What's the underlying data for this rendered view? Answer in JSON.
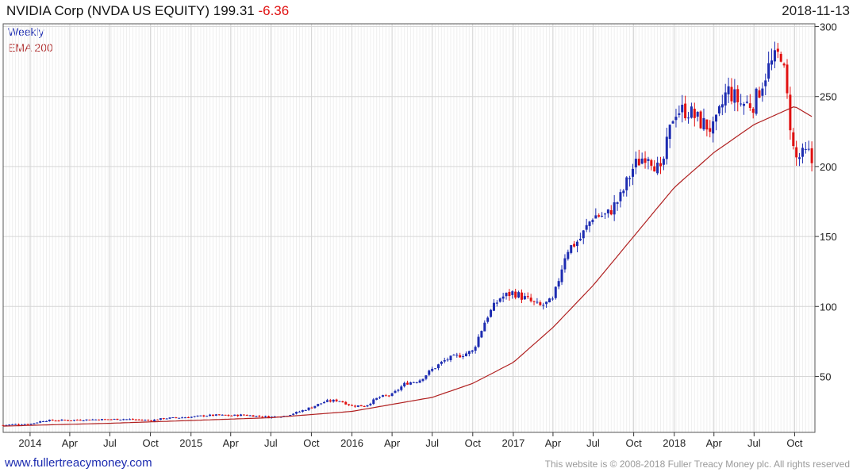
{
  "header": {
    "title": "NVIDIA Corp (NVDA US EQUITY)",
    "price": "199.31",
    "change": "-6.36",
    "date": "2018-11-13"
  },
  "legend": {
    "weekly": "Weekly",
    "ema": "EMA 200"
  },
  "footer": {
    "link": "www.fullertreacymoney.com",
    "copyright": "This website is © 2008-2018 Fuller Treacy Money plc. All rights reserved"
  },
  "colors": {
    "up": "#1c2bb0",
    "down": "#e01010",
    "ema": "#b02020",
    "grid": "#d6d6d6"
  },
  "chart_data": {
    "type": "candlestick",
    "frequency": "weekly",
    "y_ticks": [
      50,
      100,
      150,
      200,
      250,
      300
    ],
    "ylim": [
      10,
      302
    ],
    "y_axis_position": "right",
    "grid": true,
    "x_ticks": [
      "2014",
      "Apr",
      "Jul",
      "Oct",
      "2015",
      "Apr",
      "Jul",
      "Oct",
      "2016",
      "Apr",
      "Jul",
      "Oct",
      "2017",
      "Apr",
      "Jul",
      "Oct",
      "2018",
      "Apr",
      "Jul",
      "Oct"
    ],
    "x_range": [
      "2013-11-01",
      "2018-11-16"
    ],
    "last_close": 199.31,
    "series": [
      {
        "name": "Weekly",
        "kind": "close",
        "points": [
          [
            "2013-11-01",
            15.2
          ],
          [
            "2013-12-01",
            15.8
          ],
          [
            "2014-01-01",
            16.0
          ],
          [
            "2014-02-01",
            18.4
          ],
          [
            "2014-03-01",
            18.6
          ],
          [
            "2014-04-01",
            18.7
          ],
          [
            "2014-05-01",
            19.0
          ],
          [
            "2014-06-01",
            19.2
          ],
          [
            "2014-07-01",
            19.3
          ],
          [
            "2014-08-01",
            19.5
          ],
          [
            "2014-09-01",
            19.0
          ],
          [
            "2014-10-01",
            18.5
          ],
          [
            "2014-11-01",
            20.0
          ],
          [
            "2014-12-01",
            20.5
          ],
          [
            "2015-01-01",
            21.0
          ],
          [
            "2015-02-01",
            22.0
          ],
          [
            "2015-03-01",
            22.3
          ],
          [
            "2015-04-01",
            22.0
          ],
          [
            "2015-05-01",
            22.5
          ],
          [
            "2015-06-01",
            21.5
          ],
          [
            "2015-07-01",
            21.0
          ],
          [
            "2015-08-01",
            21.8
          ],
          [
            "2015-09-01",
            24.5
          ],
          [
            "2015-10-01",
            28.0
          ],
          [
            "2015-11-01",
            32.0
          ],
          [
            "2015-12-01",
            33.0
          ],
          [
            "2016-01-01",
            29.0
          ],
          [
            "2016-02-01",
            29.0
          ],
          [
            "2016-03-01",
            35.0
          ],
          [
            "2016-04-01",
            37.0
          ],
          [
            "2016-05-01",
            45.0
          ],
          [
            "2016-06-01",
            47.0
          ],
          [
            "2016-07-01",
            55.0
          ],
          [
            "2016-08-01",
            62.0
          ],
          [
            "2016-09-01",
            65.0
          ],
          [
            "2016-10-01",
            68.0
          ],
          [
            "2016-11-01",
            92.0
          ],
          [
            "2016-12-01",
            106.0
          ],
          [
            "2017-01-01",
            110.0
          ],
          [
            "2017-02-01",
            105.0
          ],
          [
            "2017-03-01",
            100.0
          ],
          [
            "2017-04-01",
            104.0
          ],
          [
            "2017-05-01",
            140.0
          ],
          [
            "2017-06-01",
            148.0
          ],
          [
            "2017-07-01",
            165.0
          ],
          [
            "2017-08-01",
            165.0
          ],
          [
            "2017-09-01",
            178.0
          ],
          [
            "2017-10-01",
            200.0
          ],
          [
            "2017-11-01",
            210.0
          ],
          [
            "2017-12-01",
            195.0
          ],
          [
            "2018-01-01",
            240.0
          ],
          [
            "2018-02-01",
            240.0
          ],
          [
            "2018-03-01",
            232.0
          ],
          [
            "2018-04-01",
            226.0
          ],
          [
            "2018-05-01",
            255.0
          ],
          [
            "2018-06-01",
            245.0
          ],
          [
            "2018-07-01",
            245.0
          ],
          [
            "2018-08-01",
            270.0
          ],
          [
            "2018-09-01",
            282.0
          ],
          [
            "2018-10-01",
            205.0
          ],
          [
            "2018-11-01",
            210.0
          ],
          [
            "2018-11-13",
            199.31
          ]
        ]
      },
      {
        "name": "EMA 200",
        "kind": "line",
        "points": [
          [
            "2013-11-01",
            14.5
          ],
          [
            "2014-07-01",
            16.5
          ],
          [
            "2015-01-01",
            18.5
          ],
          [
            "2015-07-01",
            20.5
          ],
          [
            "2016-01-01",
            25.0
          ],
          [
            "2016-07-01",
            35.0
          ],
          [
            "2016-10-01",
            45.0
          ],
          [
            "2017-01-01",
            60.0
          ],
          [
            "2017-04-01",
            85.0
          ],
          [
            "2017-07-01",
            115.0
          ],
          [
            "2017-10-01",
            150.0
          ],
          [
            "2018-01-01",
            185.0
          ],
          [
            "2018-04-01",
            210.0
          ],
          [
            "2018-07-01",
            230.0
          ],
          [
            "2018-10-01",
            243.0
          ],
          [
            "2018-11-13",
            235.0
          ]
        ]
      }
    ]
  }
}
